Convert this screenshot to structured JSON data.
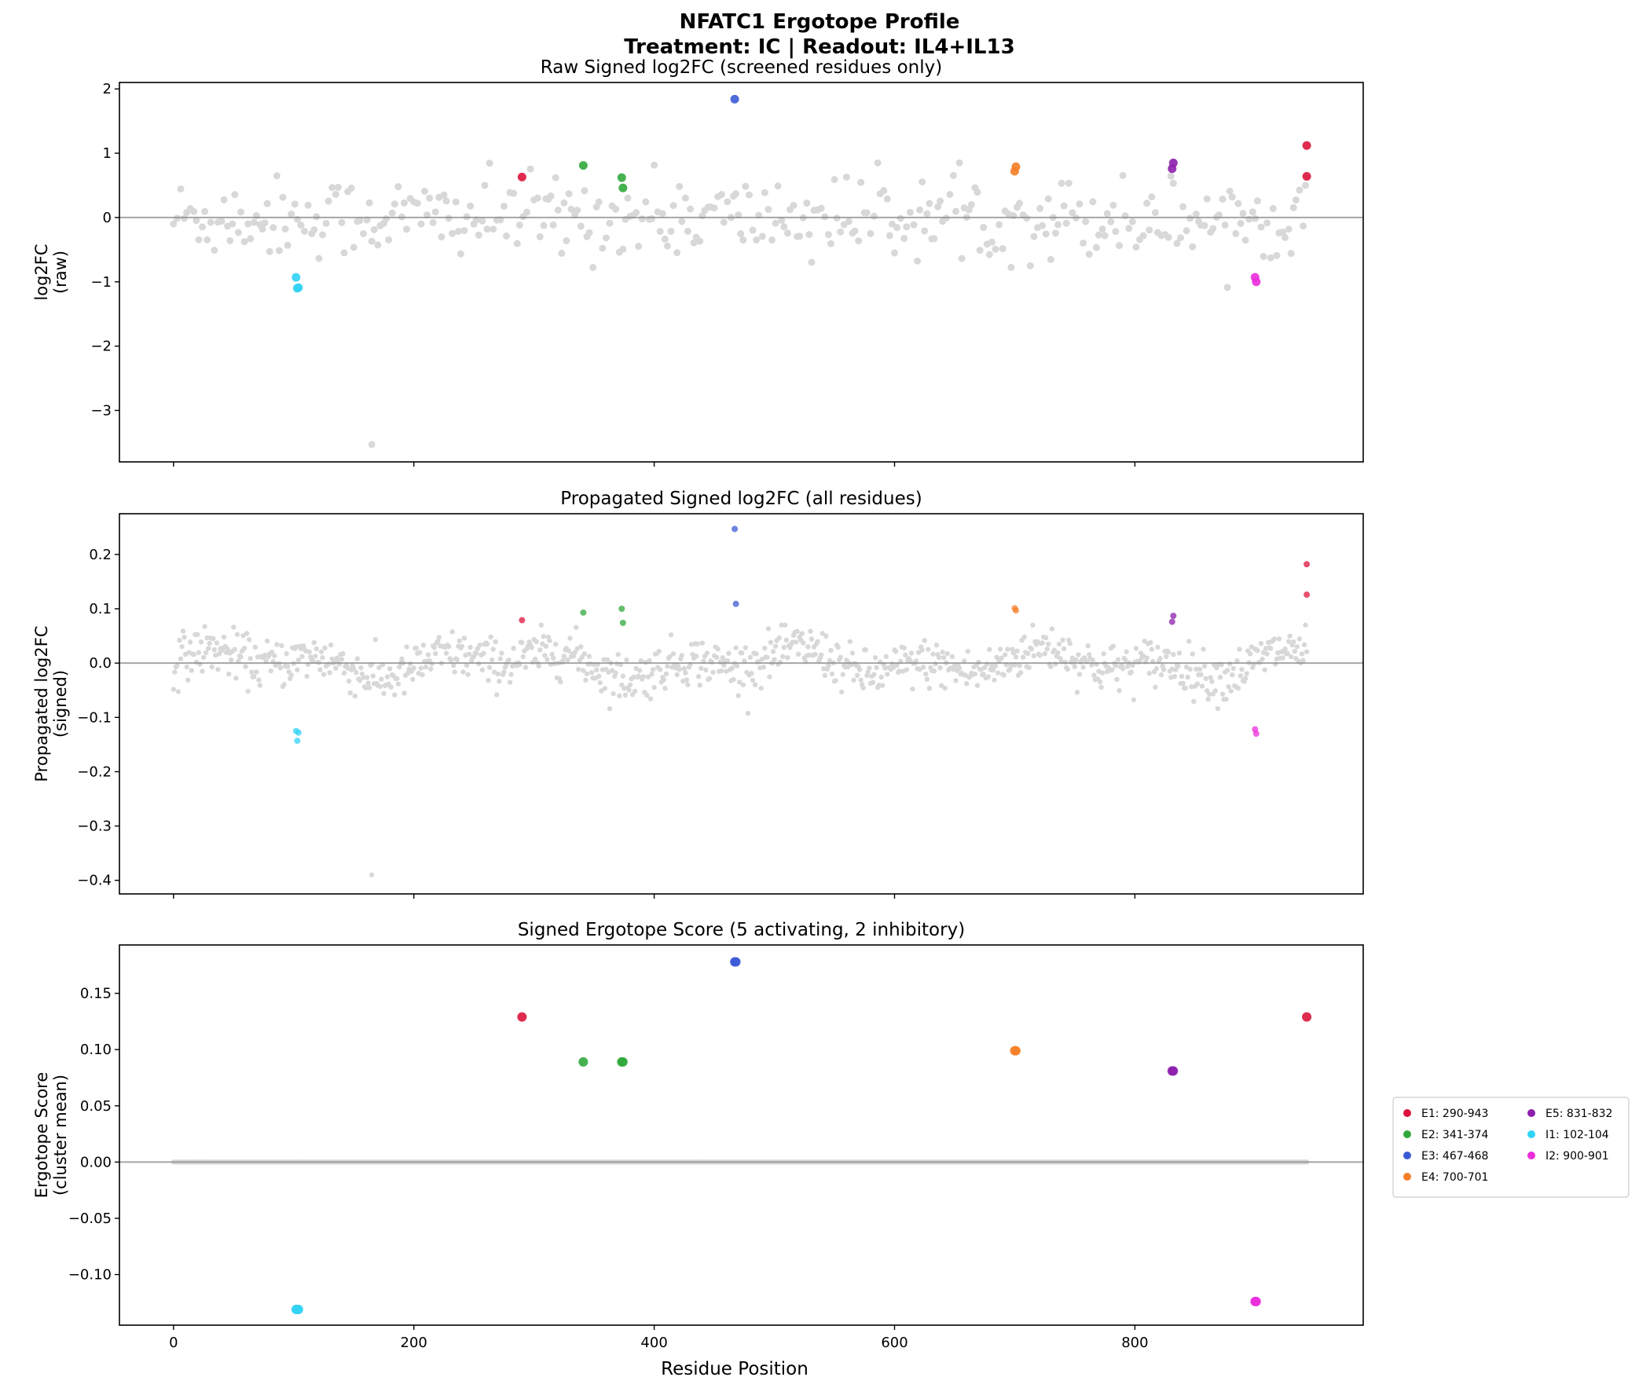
{
  "figure": {
    "title_line1": "NFATC1 Ergotope Profile",
    "title_line2": "Treatment: IC | Readout: IL4+IL13",
    "xlabel": "Residue Position",
    "xlim": [
      -45,
      990
    ],
    "xticks": [
      0,
      200,
      400,
      600,
      800
    ]
  },
  "colors": {
    "background_points": "#cccccc",
    "zero_line": "#888888",
    "E1": "#dc143c",
    "E2": "#32a83c",
    "E3": "#3c5ad6",
    "E4": "#f57f28",
    "E5": "#8c1fad",
    "I1": "#32d2f5",
    "I2": "#eb2ddb"
  },
  "legend": {
    "placement": "right, outside axes",
    "items": [
      {
        "key": "E1",
        "label": "E1: 290-943"
      },
      {
        "key": "E2",
        "label": "E2: 341-374"
      },
      {
        "key": "E3",
        "label": "E3: 467-468"
      },
      {
        "key": "E4",
        "label": "E4: 700-701"
      },
      {
        "key": "E5",
        "label": "E5: 831-832"
      },
      {
        "key": "I1",
        "label": "I1: 102-104"
      },
      {
        "key": "I2",
        "label": "I2: 900-901"
      }
    ]
  },
  "chart_data": [
    {
      "type": "scatter",
      "title": "Raw Signed log2FC (screened residues only)",
      "ylabel_line1": "log2FC",
      "ylabel_line2": "(raw)",
      "ylim": [
        -3.8,
        2.1
      ],
      "yticks": [
        -3,
        -2,
        -1,
        0,
        1,
        2
      ],
      "zero_line": true,
      "grid": false,
      "series": [
        {
          "key": "E1",
          "x": [
            290,
            943,
            943
          ],
          "y": [
            0.63,
            1.12,
            0.64
          ]
        },
        {
          "key": "E2",
          "x": [
            341,
            373,
            374
          ],
          "y": [
            0.81,
            0.62,
            0.46
          ]
        },
        {
          "key": "E3",
          "x": [
            467
          ],
          "y": [
            1.84
          ]
        },
        {
          "key": "E4",
          "x": [
            700,
            701
          ],
          "y": [
            0.72,
            0.79
          ]
        },
        {
          "key": "E5",
          "x": [
            831,
            832
          ],
          "y": [
            0.76,
            0.85
          ]
        },
        {
          "key": "I1",
          "x": [
            102,
            103,
            104
          ],
          "y": [
            -0.93,
            -1.1,
            -1.09
          ]
        },
        {
          "key": "I2",
          "x": [
            900,
            901
          ],
          "y": [
            -0.93,
            -1.0
          ]
        }
      ]
    },
    {
      "type": "scatter",
      "title": "Propagated Signed log2FC (all residues)",
      "ylabel_line1": "Propagated log2FC",
      "ylabel_line2": "(signed)",
      "ylim": [
        -0.425,
        0.275
      ],
      "yticks": [
        -0.4,
        -0.3,
        -0.2,
        -0.1,
        0.0,
        0.1,
        0.2
      ],
      "zero_line": true,
      "grid": false,
      "series": [
        {
          "key": "E1",
          "x": [
            290,
            943,
            943
          ],
          "y": [
            0.079,
            0.182,
            0.126
          ]
        },
        {
          "key": "E2",
          "x": [
            341,
            373,
            374
          ],
          "y": [
            0.093,
            0.1,
            0.074
          ]
        },
        {
          "key": "E3",
          "x": [
            467,
            468
          ],
          "y": [
            0.247,
            0.109
          ]
        },
        {
          "key": "E4",
          "x": [
            700,
            701
          ],
          "y": [
            0.101,
            0.097
          ]
        },
        {
          "key": "E5",
          "x": [
            831,
            832
          ],
          "y": [
            0.076,
            0.087
          ]
        },
        {
          "key": "I1",
          "x": [
            102,
            103,
            104
          ],
          "y": [
            -0.125,
            -0.143,
            -0.128
          ]
        },
        {
          "key": "I2",
          "x": [
            900,
            901
          ],
          "y": [
            -0.122,
            -0.13
          ]
        }
      ]
    },
    {
      "type": "scatter",
      "title": "Signed Ergotope Score (5 activating, 2 inhibitory)",
      "ylabel_line1": "Ergotope Score",
      "ylabel_line2": "(cluster mean)",
      "ylim": [
        -0.145,
        0.193
      ],
      "yticks": [
        -0.1,
        -0.05,
        0.0,
        0.05,
        0.1,
        0.15
      ],
      "zero_line": true,
      "grid": false,
      "series": [
        {
          "key": "E1",
          "x": [
            290,
            943
          ],
          "y": [
            0.129,
            0.129
          ]
        },
        {
          "key": "E2",
          "x": [
            341,
            373,
            374
          ],
          "y": [
            0.089,
            0.089,
            0.089
          ]
        },
        {
          "key": "E3",
          "x": [
            467,
            468
          ],
          "y": [
            0.178,
            0.178
          ]
        },
        {
          "key": "E4",
          "x": [
            700,
            701
          ],
          "y": [
            0.099,
            0.099
          ]
        },
        {
          "key": "E5",
          "x": [
            831,
            832
          ],
          "y": [
            0.081,
            0.081
          ]
        },
        {
          "key": "I1",
          "x": [
            102,
            103,
            104
          ],
          "y": [
            -0.131,
            -0.131,
            -0.131
          ]
        },
        {
          "key": "I2",
          "x": [
            900,
            901
          ],
          "y": [
            -0.124,
            -0.124
          ]
        }
      ]
    }
  ]
}
